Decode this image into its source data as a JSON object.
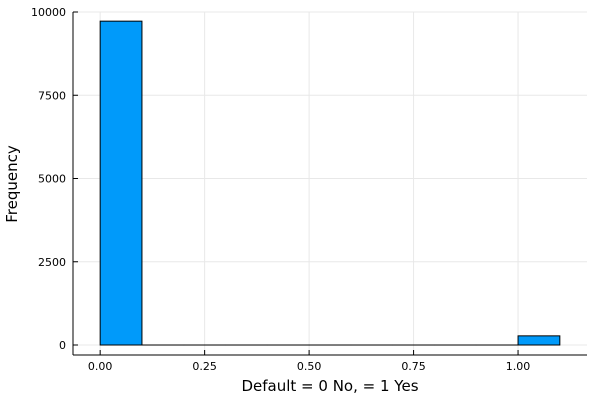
{
  "chart_data": {
    "type": "bar",
    "subtype": "histogram",
    "bins": [
      {
        "start": 0.0,
        "end": 0.1,
        "value": 9725
      },
      {
        "start": 0.1,
        "end": 0.2,
        "value": 0
      },
      {
        "start": 0.2,
        "end": 0.3,
        "value": 0
      },
      {
        "start": 0.3,
        "end": 0.4,
        "value": 0
      },
      {
        "start": 0.4,
        "end": 0.5,
        "value": 0
      },
      {
        "start": 0.5,
        "end": 0.6,
        "value": 0
      },
      {
        "start": 0.6,
        "end": 0.7,
        "value": 0
      },
      {
        "start": 0.7,
        "end": 0.8,
        "value": 0
      },
      {
        "start": 0.8,
        "end": 0.9,
        "value": 0
      },
      {
        "start": 0.9,
        "end": 1.0,
        "value": 0
      },
      {
        "start": 1.0,
        "end": 1.1,
        "value": 275
      }
    ],
    "xlabel": "Default = 0 No, = 1 Yes",
    "ylabel": "Frequency",
    "xlim": [
      -0.065,
      1.165
    ],
    "ylim": [
      -300,
      10000
    ],
    "xticks": [
      {
        "value": 0.0,
        "label": "0.00"
      },
      {
        "value": 0.25,
        "label": "0.25"
      },
      {
        "value": 0.5,
        "label": "0.50"
      },
      {
        "value": 0.75,
        "label": "0.75"
      },
      {
        "value": 1.0,
        "label": "1.00"
      }
    ],
    "yticks": [
      {
        "value": 0,
        "label": "0"
      },
      {
        "value": 2500,
        "label": "2500"
      },
      {
        "value": 5000,
        "label": "5000"
      },
      {
        "value": 7500,
        "label": "7500"
      },
      {
        "value": 10000,
        "label": "10000"
      }
    ],
    "grid": true,
    "legend": "none",
    "bar_color": "#009AFA"
  }
}
